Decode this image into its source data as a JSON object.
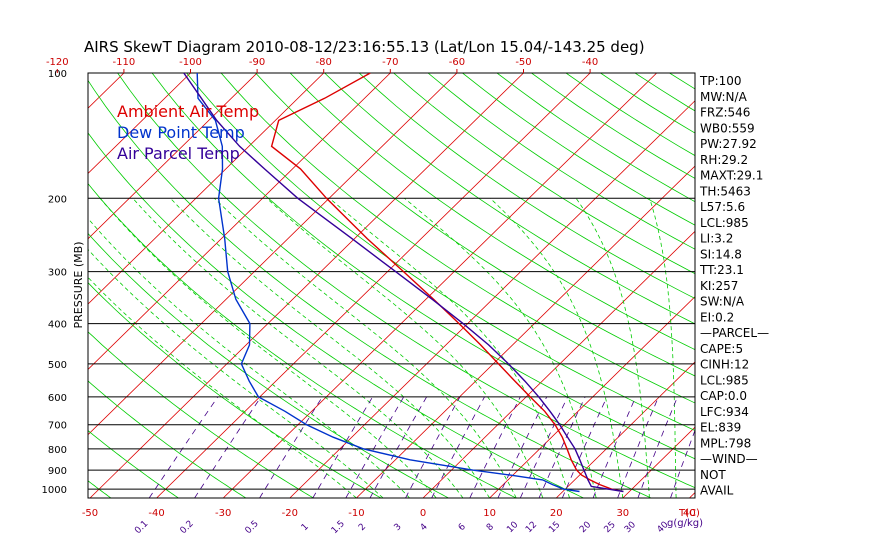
{
  "title": "AIRS SkewT Diagram 2010-08-12/23:16:55.13 (Lat/Lon 15.04/-143.25 deg)",
  "colors": {
    "temperature": "#dd0000",
    "dewpoint": "#0033cc",
    "parcel": "#330099",
    "isotherm": "#dd0000",
    "dry_adiabat": "#00cc00",
    "moist_adiabat": "#00cc00",
    "mixing_ratio": "#440088",
    "isobar": "#000000"
  },
  "legend": [
    {
      "label": "Ambient Air Temp",
      "color": "#dd0000"
    },
    {
      "label": "Dew Point Temp",
      "color": "#0033cc"
    },
    {
      "label": "Air Parcel Temp",
      "color": "#330099"
    }
  ],
  "indices": [
    "TP:100",
    "MW:N/A",
    "FRZ:546",
    "WB0:559",
    "PW:27.92",
    "RH:29.2",
    "MAXT:29.1",
    "TH:5463",
    "L57:5.6",
    "LCL:985",
    "LI:3.2",
    "SI:14.8",
    "TT:23.1",
    "KI:257",
    "SW:N/A",
    "EI:0.2",
    "—PARCEL—",
    "CAPE:5",
    "CINH:12",
    "LCL:985",
    "CAP:0.0",
    "LFC:934",
    "EL:839",
    "MPL:798",
    "—WIND—",
    "NOT",
    "AVAIL"
  ],
  "chart_data": {
    "type": "line",
    "title": "AIRS SkewT Diagram 2010-08-12/23:16:55.13 (Lat/Lon 15.04/-143.25 deg)",
    "ylabel": "PRESSURE (MB)",
    "xlabel": "T(C)",
    "mixing_ratio_label": "g(g/kg)",
    "y_scale": "log",
    "ylim": [
      1050,
      100
    ],
    "pressure_ticks": [
      "100",
      "200",
      "300",
      "400",
      "500",
      "600",
      "700",
      "800",
      "900",
      "1000"
    ],
    "temp_ticks_top": [
      "-120",
      "-110",
      "-100",
      "-90",
      "-80",
      "-70",
      "-60",
      "-50",
      "-40"
    ],
    "temp_ticks_bottom": [
      "-50",
      "-40",
      "-30",
      "-20",
      "-10",
      "0",
      "10",
      "20",
      "30",
      "40"
    ],
    "mixing_ratio_ticks": [
      "0.1",
      "0.2",
      "0.5",
      "1",
      "1.5",
      "2",
      "3",
      "4",
      "6",
      "8",
      "10",
      "12",
      "15",
      "20",
      "25",
      "30",
      "40"
    ],
    "series": [
      {
        "name": "Ambient Air Temp",
        "pressure": [
          1013,
          1000,
          975,
          950,
          925,
          900,
          850,
          800,
          750,
          700,
          650,
          600,
          550,
          500,
          450,
          400,
          350,
          300,
          250,
          200,
          170,
          150,
          130,
          115,
          100
        ],
        "temp": [
          29.1,
          27,
          24.5,
          22.3,
          20.3,
          18.8,
          16.4,
          14.1,
          11.6,
          8.6,
          5.0,
          0.6,
          -4.1,
          -9.2,
          -14.8,
          -21.3,
          -28.8,
          -37.6,
          -48.1,
          -60.4,
          -68.8,
          -76.6,
          -79.5,
          -76.0,
          -73.0
        ]
      },
      {
        "name": "Dew Point Temp",
        "pressure": [
          1013,
          1000,
          975,
          950,
          925,
          900,
          850,
          800,
          750,
          700,
          650,
          600,
          550,
          500,
          450,
          400,
          350,
          300,
          250,
          200,
          170,
          150,
          130,
          115,
          100
        ],
        "temp": [
          22.5,
          19.8,
          17.4,
          15.2,
          9.6,
          3.2,
          -7.8,
          -16.5,
          -22.8,
          -28.7,
          -34.0,
          -40.2,
          -44.0,
          -47.8,
          -49.5,
          -52.7,
          -58.5,
          -64.0,
          -69.5,
          -76.6,
          -80.5,
          -84.0,
          -89.0,
          -95.0,
          -99.0
        ]
      },
      {
        "name": "Air Parcel Temp",
        "pressure": [
          1013,
          985,
          950,
          900,
          850,
          800,
          750,
          700,
          650,
          600,
          550,
          500,
          450,
          400,
          350,
          300,
          250,
          200,
          170,
          150,
          130,
          115,
          100
        ],
        "temp": [
          29.1,
          23.5,
          22.0,
          19.9,
          17.7,
          15.3,
          12.4,
          9.3,
          5.8,
          1.9,
          -2.6,
          -7.7,
          -13.6,
          -20.7,
          -29.0,
          -38.8,
          -50.4,
          -64.7,
          -74.2,
          -81.4,
          -88.8,
          -94.5,
          -101.0
        ]
      }
    ]
  }
}
